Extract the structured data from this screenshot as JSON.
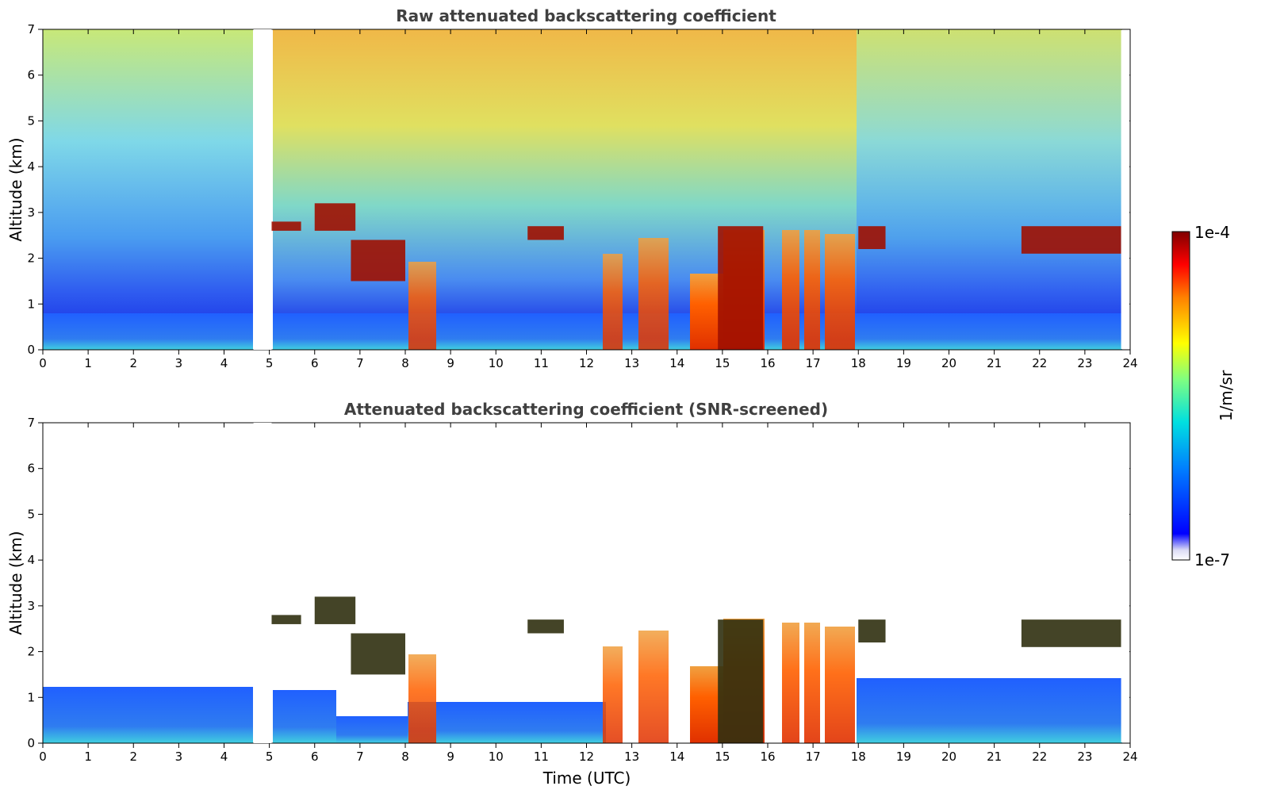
{
  "chart_data": [
    {
      "type": "heatmap",
      "title": "Raw attenuated backscattering coefficient",
      "xlabel": "",
      "ylabel": "Altitude (km)",
      "xlim": [
        0,
        24
      ],
      "ylim": [
        0,
        7
      ],
      "xticks": [
        "0",
        "1",
        "2",
        "3",
        "4",
        "5",
        "6",
        "7",
        "8",
        "9",
        "10",
        "11",
        "12",
        "13",
        "14",
        "15",
        "16",
        "17",
        "18",
        "19",
        "20",
        "21",
        "22",
        "23",
        "24"
      ],
      "yticks": [
        "0",
        "1",
        "2",
        "3",
        "4",
        "5",
        "6",
        "7"
      ],
      "data_gap_hours": [
        4.65,
        5.05
      ],
      "data_end_hours": 23.8,
      "cloud_layers": [
        {
          "start": 5.0,
          "end": 5.7,
          "alt_bottom": 2.6,
          "alt_top": 2.8
        },
        {
          "start": 6.0,
          "end": 6.9,
          "alt_bottom": 2.6,
          "alt_top": 3.2
        },
        {
          "start": 6.8,
          "end": 8.0,
          "alt_bottom": 1.5,
          "alt_top": 2.4
        },
        {
          "start": 10.7,
          "end": 11.5,
          "alt_bottom": 2.4,
          "alt_top": 2.7
        },
        {
          "start": 14.9,
          "end": 15.9,
          "alt_bottom": 0.0,
          "alt_top": 2.7
        },
        {
          "start": 18.0,
          "end": 18.6,
          "alt_bottom": 2.2,
          "alt_top": 2.7
        },
        {
          "start": 21.6,
          "end": 23.8,
          "alt_bottom": 2.1,
          "alt_top": 2.7
        }
      ]
    },
    {
      "type": "heatmap",
      "title": "Attenuated backscattering coefficient (SNR-screened)",
      "xlabel": "Time (UTC)",
      "ylabel": "Altitude (km)",
      "xlim": [
        0,
        24
      ],
      "ylim": [
        0,
        7
      ],
      "xticks": [
        "0",
        "1",
        "2",
        "3",
        "4",
        "5",
        "6",
        "7",
        "8",
        "9",
        "10",
        "11",
        "12",
        "13",
        "14",
        "15",
        "16",
        "17",
        "18",
        "19",
        "20",
        "21",
        "22",
        "23",
        "24"
      ],
      "yticks": [
        "0",
        "1",
        "2",
        "3",
        "4",
        "5",
        "6",
        "7"
      ],
      "data_gap_hours": [
        4.65,
        5.05
      ],
      "data_end_hours": 23.8
    }
  ],
  "colorbar": {
    "label": "1/m/sr",
    "max_label": "1e-4",
    "min_label": "1e-7",
    "colormap": [
      "#ffffff",
      "#dcdcf5",
      "#0000ff",
      "#0080ff",
      "#00e0e0",
      "#80ff80",
      "#ffff00",
      "#ff8000",
      "#ff0000",
      "#800000"
    ]
  }
}
